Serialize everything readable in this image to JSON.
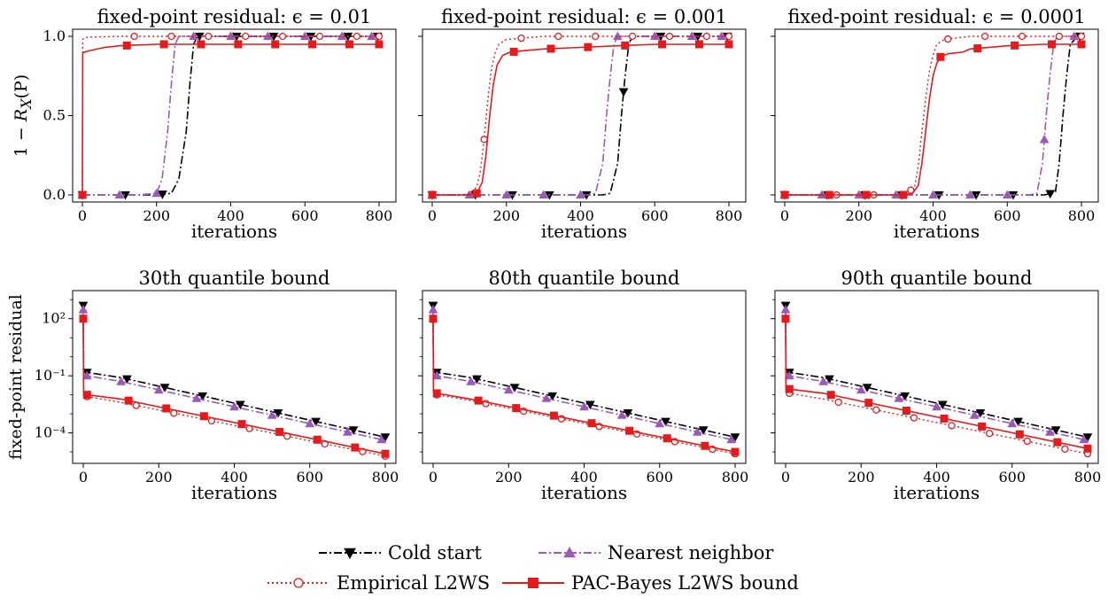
{
  "chart_data": [
    {
      "type": "line",
      "title": "fixed-point residual: ϵ = 0.01",
      "xlabel": "iterations",
      "ylabel": "1 − R_X(P)",
      "xlim": [
        0,
        800
      ],
      "ylim": [
        0,
        1
      ],
      "xticks": [
        "0",
        "200",
        "400",
        "600",
        "800"
      ],
      "yticks": [
        "0.0",
        "0.5",
        "1.0"
      ],
      "series": [
        {
          "name": "Cold start",
          "x": [
            0,
            150,
            200,
            240,
            260,
            280,
            290,
            300,
            310,
            330,
            400,
            500,
            600,
            700,
            800
          ],
          "y": [
            0,
            0,
            0,
            0.01,
            0.1,
            0.4,
            0.7,
            0.95,
            1.0,
            1.0,
            1.0,
            1.0,
            1.0,
            1.0,
            1.0
          ]
        },
        {
          "name": "Nearest neighbor",
          "x": [
            0,
            150,
            200,
            215,
            230,
            240,
            250,
            260,
            270,
            300,
            400,
            500,
            600,
            700,
            800
          ],
          "y": [
            0,
            0,
            0.01,
            0.1,
            0.4,
            0.7,
            0.95,
            1.0,
            1.0,
            1.0,
            1.0,
            1.0,
            1.0,
            1.0,
            1.0
          ]
        },
        {
          "name": "Empirical L2WS",
          "x": [
            0,
            1,
            5,
            20,
            100,
            200,
            300,
            400,
            500,
            600,
            700,
            800
          ],
          "y": [
            0,
            0.98,
            0.99,
            0.995,
            1.0,
            1.0,
            1.0,
            1.0,
            1.0,
            1.0,
            1.0,
            1.0
          ]
        },
        {
          "name": "PAC-Bayes L2WS bound",
          "x": [
            0,
            1,
            5,
            20,
            60,
            100,
            150,
            200,
            300,
            400,
            500,
            600,
            700,
            800
          ],
          "y": [
            0,
            0.9,
            0.9,
            0.91,
            0.93,
            0.94,
            0.945,
            0.95,
            0.95,
            0.95,
            0.95,
            0.95,
            0.95,
            0.95
          ]
        }
      ]
    },
    {
      "type": "line",
      "title": "fixed-point residual: ϵ = 0.001",
      "xlabel": "iterations",
      "xlim": [
        0,
        800
      ],
      "ylim": [
        0,
        1
      ],
      "xticks": [
        "0",
        "200",
        "400",
        "600",
        "800"
      ],
      "series": [
        {
          "name": "Cold start",
          "x": [
            0,
            400,
            460,
            480,
            500,
            510,
            520,
            530,
            540,
            560,
            600,
            700,
            800
          ],
          "y": [
            0,
            0,
            0,
            0.01,
            0.2,
            0.5,
            0.75,
            0.95,
            1.0,
            1.0,
            1.0,
            1.0,
            1.0
          ]
        },
        {
          "name": "Nearest neighbor",
          "x": [
            0,
            380,
            420,
            440,
            460,
            470,
            480,
            490,
            500,
            530,
            600,
            700,
            800
          ],
          "y": [
            0,
            0,
            0,
            0.01,
            0.2,
            0.5,
            0.75,
            0.95,
            1.0,
            1.0,
            1.0,
            1.0,
            1.0
          ]
        },
        {
          "name": "Empirical L2WS",
          "x": [
            0,
            80,
            100,
            120,
            130,
            140,
            150,
            160,
            170,
            180,
            200,
            250,
            300,
            400,
            500,
            600,
            700,
            800
          ],
          "y": [
            0,
            0,
            0.01,
            0.05,
            0.15,
            0.35,
            0.6,
            0.8,
            0.9,
            0.95,
            0.98,
            0.99,
            1.0,
            1.0,
            1.0,
            1.0,
            1.0,
            1.0
          ]
        },
        {
          "name": "PAC-Bayes L2WS bound",
          "x": [
            0,
            100,
            120,
            135,
            145,
            155,
            165,
            175,
            190,
            210,
            250,
            300,
            400,
            500,
            600,
            700,
            800
          ],
          "y": [
            0,
            0,
            0.01,
            0.08,
            0.25,
            0.5,
            0.7,
            0.82,
            0.88,
            0.9,
            0.91,
            0.92,
            0.93,
            0.94,
            0.95,
            0.95,
            0.95
          ]
        }
      ]
    },
    {
      "type": "line",
      "title": "fixed-point residual: ϵ = 0.0001",
      "xlabel": "iterations",
      "xlim": [
        0,
        800
      ],
      "ylim": [
        0,
        1
      ],
      "xticks": [
        "0",
        "200",
        "400",
        "600",
        "800"
      ],
      "series": [
        {
          "name": "Cold start",
          "x": [
            0,
            600,
            700,
            720,
            730,
            740,
            750,
            760,
            770,
            790,
            800
          ],
          "y": [
            0,
            0,
            0,
            0.01,
            0.02,
            0.2,
            0.5,
            0.75,
            0.95,
            1.0,
            1.0
          ]
        },
        {
          "name": "Nearest neighbor",
          "x": [
            0,
            600,
            660,
            680,
            695,
            705,
            715,
            725,
            735,
            760,
            800
          ],
          "y": [
            0,
            0,
            0,
            0.01,
            0.2,
            0.5,
            0.75,
            0.95,
            1.0,
            1.0,
            1.0
          ]
        },
        {
          "name": "Empirical L2WS",
          "x": [
            0,
            300,
            330,
            350,
            360,
            370,
            380,
            390,
            400,
            410,
            430,
            500,
            600,
            700,
            800
          ],
          "y": [
            0,
            0,
            0.01,
            0.05,
            0.18,
            0.4,
            0.6,
            0.78,
            0.88,
            0.95,
            0.98,
            1.0,
            1.0,
            1.0,
            1.0
          ]
        },
        {
          "name": "PAC-Bayes L2WS bound",
          "x": [
            0,
            320,
            345,
            360,
            370,
            380,
            390,
            400,
            410,
            420,
            440,
            480,
            500,
            600,
            700,
            800
          ],
          "y": [
            0,
            0,
            0.01,
            0.06,
            0.2,
            0.4,
            0.6,
            0.75,
            0.83,
            0.87,
            0.89,
            0.9,
            0.92,
            0.94,
            0.95,
            0.95
          ]
        }
      ]
    },
    {
      "type": "line",
      "title": "30th quantile bound",
      "xlabel": "iterations",
      "ylabel": "fixed-point residual",
      "yscale": "log",
      "xlim": [
        0,
        800
      ],
      "ylim": [
        2.5e-06,
        3000
      ],
      "xticks": [
        "0",
        "200",
        "400",
        "600",
        "800"
      ],
      "yticks": [
        "10²",
        "10⁻¹",
        "10⁻⁴"
      ],
      "series": [
        {
          "name": "Cold start",
          "x": [
            0,
            1,
            10,
            100,
            800
          ],
          "y": [
            500,
            0.2,
            0.15,
            0.08,
            6e-05
          ]
        },
        {
          "name": "Nearest neighbor",
          "x": [
            0,
            1,
            10,
            100,
            800
          ],
          "y": [
            300,
            0.12,
            0.1,
            0.05,
            4e-05
          ]
        },
        {
          "name": "Empirical L2WS",
          "x": [
            0,
            1,
            10,
            100,
            800
          ],
          "y": [
            100,
            0.01,
            0.008,
            0.004,
            6e-06
          ]
        },
        {
          "name": "PAC-Bayes L2WS bound",
          "x": [
            0,
            1,
            10,
            100,
            800
          ],
          "y": [
            100,
            0.012,
            0.01,
            0.006,
            8e-06
          ]
        }
      ]
    },
    {
      "type": "line",
      "title": "80th quantile bound",
      "xlabel": "iterations",
      "yscale": "log",
      "xlim": [
        0,
        800
      ],
      "ylim": [
        2.5e-06,
        3000
      ],
      "xticks": [
        "0",
        "200",
        "400",
        "600",
        "800"
      ],
      "series": [
        {
          "name": "Cold start",
          "x": [
            0,
            1,
            10,
            100,
            800
          ],
          "y": [
            500,
            0.2,
            0.15,
            0.08,
            6e-05
          ]
        },
        {
          "name": "Nearest neighbor",
          "x": [
            0,
            1,
            10,
            100,
            800
          ],
          "y": [
            300,
            0.12,
            0.1,
            0.05,
            4e-05
          ]
        },
        {
          "name": "Empirical L2WS",
          "x": [
            0,
            1,
            10,
            100,
            800
          ],
          "y": [
            100,
            0.012,
            0.01,
            0.005,
            8e-06
          ]
        },
        {
          "name": "PAC-Bayes L2WS bound",
          "x": [
            0,
            1,
            10,
            100,
            800
          ],
          "y": [
            100,
            0.015,
            0.012,
            0.006,
            1e-05
          ]
        }
      ]
    },
    {
      "type": "line",
      "title": "90th quantile bound",
      "xlabel": "iterations",
      "yscale": "log",
      "xlim": [
        0,
        800
      ],
      "ylim": [
        2.5e-06,
        3000
      ],
      "xticks": [
        "0",
        "200",
        "400",
        "600",
        "800"
      ],
      "series": [
        {
          "name": "Cold start",
          "x": [
            0,
            1,
            10,
            100,
            800
          ],
          "y": [
            500,
            0.2,
            0.15,
            0.08,
            6e-05
          ]
        },
        {
          "name": "Nearest neighbor",
          "x": [
            0,
            1,
            10,
            100,
            800
          ],
          "y": [
            300,
            0.12,
            0.1,
            0.05,
            4e-05
          ]
        },
        {
          "name": "Empirical L2WS",
          "x": [
            0,
            1,
            10,
            100,
            800
          ],
          "y": [
            100,
            0.015,
            0.012,
            0.006,
            8e-06
          ]
        },
        {
          "name": "PAC-Bayes L2WS bound",
          "x": [
            0,
            1,
            10,
            100,
            800
          ],
          "y": [
            100,
            0.02,
            0.02,
            0.012,
            1.5e-05
          ]
        }
      ]
    }
  ],
  "series_styles": {
    "Cold start": {
      "color": "#000000",
      "dash": "9,3,2,3",
      "marker": "triangle-down",
      "filled": true
    },
    "Nearest neighbor": {
      "color": "#9b59b6",
      "dash": "9,3,2,3",
      "marker": "triangle-up",
      "filled": true
    },
    "Empirical L2WS": {
      "color": "#e41a1c",
      "dash": "2,3",
      "marker": "circle",
      "filled": false
    },
    "PAC-Bayes L2WS bound": {
      "color": "#e41a1c",
      "dash": "",
      "marker": "square",
      "filled": true
    }
  },
  "legend": {
    "placement": "bottom-center",
    "items": [
      "Cold start",
      "Nearest neighbor",
      "Empirical L2WS",
      "PAC-Bayes L2WS bound"
    ]
  }
}
